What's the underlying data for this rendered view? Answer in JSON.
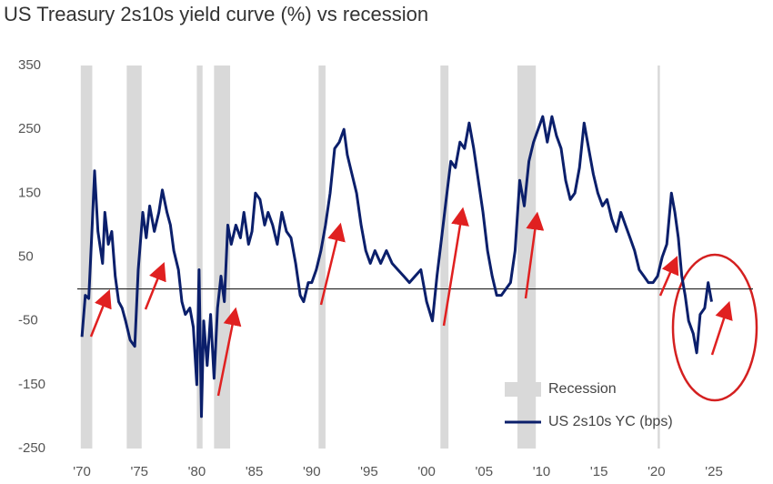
{
  "chart_data": {
    "type": "line",
    "title": "US Treasury 2s10s yield curve (%) vs recession",
    "x": [
      1970.0,
      1970.3,
      1970.6,
      1970.9,
      1971.1,
      1971.4,
      1971.8,
      1972.0,
      1972.3,
      1972.6,
      1972.9,
      1973.2,
      1973.5,
      1973.8,
      1974.2,
      1974.6,
      1974.9,
      1975.3,
      1975.6,
      1975.9,
      1976.3,
      1976.7,
      1977.0,
      1977.4,
      1977.7,
      1978.0,
      1978.4,
      1978.7,
      1979.0,
      1979.4,
      1979.7,
      1980.0,
      1980.2,
      1980.4,
      1980.6,
      1980.9,
      1981.2,
      1981.5,
      1981.8,
      1982.1,
      1982.4,
      1982.7,
      1983.0,
      1983.4,
      1983.8,
      1984.1,
      1984.5,
      1984.8,
      1985.1,
      1985.5,
      1985.9,
      1986.2,
      1986.6,
      1987.0,
      1987.4,
      1987.8,
      1988.2,
      1988.6,
      1989.0,
      1989.3,
      1989.7,
      1990.0,
      1990.4,
      1990.8,
      1991.2,
      1991.6,
      1992.0,
      1992.4,
      1992.8,
      1993.1,
      1993.5,
      1993.9,
      1994.3,
      1994.7,
      1995.1,
      1995.5,
      1996.0,
      1996.5,
      1997.0,
      1997.5,
      1998.0,
      1998.5,
      1999.0,
      1999.5,
      2000.0,
      2000.5,
      2000.9,
      2001.3,
      2001.7,
      2002.1,
      2002.5,
      2002.9,
      2003.3,
      2003.7,
      2004.1,
      2004.5,
      2004.9,
      2005.3,
      2005.7,
      2006.1,
      2006.5,
      2006.9,
      2007.3,
      2007.7,
      2008.1,
      2008.5,
      2008.9,
      2009.3,
      2009.7,
      2010.1,
      2010.5,
      2010.9,
      2011.3,
      2011.7,
      2012.1,
      2012.5,
      2012.9,
      2013.3,
      2013.7,
      2014.1,
      2014.5,
      2014.9,
      2015.3,
      2015.7,
      2016.1,
      2016.5,
      2016.9,
      2017.3,
      2017.7,
      2018.1,
      2018.5,
      2018.9,
      2019.3,
      2019.7,
      2020.1,
      2020.5,
      2020.9,
      2021.3,
      2021.6,
      2021.9,
      2022.2,
      2022.5,
      2022.8,
      2023.2,
      2023.5,
      2023.8,
      2024.2,
      2024.5,
      2024.8
    ],
    "series": [
      {
        "name": "US 2s10s YC (bps)",
        "color": "#0b1f6b",
        "values": [
          -75,
          -10,
          -15,
          100,
          185,
          90,
          40,
          120,
          70,
          90,
          20,
          -20,
          -30,
          -50,
          -80,
          -90,
          30,
          120,
          80,
          130,
          90,
          120,
          155,
          120,
          100,
          60,
          30,
          -20,
          -40,
          -30,
          -60,
          -150,
          30,
          -200,
          -50,
          -120,
          -40,
          -140,
          -30,
          20,
          -20,
          100,
          70,
          100,
          80,
          120,
          70,
          90,
          150,
          140,
          100,
          120,
          100,
          70,
          120,
          90,
          80,
          40,
          -10,
          -20,
          10,
          10,
          30,
          60,
          100,
          150,
          220,
          230,
          250,
          210,
          180,
          150,
          100,
          60,
          40,
          60,
          40,
          60,
          40,
          30,
          20,
          10,
          20,
          30,
          -20,
          -50,
          20,
          80,
          140,
          200,
          190,
          230,
          220,
          260,
          220,
          170,
          120,
          60,
          20,
          -10,
          -10,
          0,
          10,
          60,
          170,
          130,
          200,
          230,
          250,
          270,
          230,
          270,
          240,
          220,
          170,
          140,
          150,
          190,
          260,
          220,
          180,
          150,
          130,
          140,
          110,
          90,
          120,
          100,
          80,
          60,
          30,
          20,
          10,
          10,
          20,
          50,
          70,
          150,
          120,
          80,
          20,
          -10,
          -50,
          -70,
          -100,
          -40,
          -30,
          10,
          -20
        ]
      }
    ],
    "recessions": {
      "name": "Recession",
      "color": "#d9d9d9",
      "values": [
        [
          1969.9,
          1970.9
        ],
        [
          1973.9,
          1975.2
        ],
        [
          1980.0,
          1980.5
        ],
        [
          1981.5,
          1982.9
        ],
        [
          1990.6,
          1991.2
        ],
        [
          2001.2,
          2001.9
        ],
        [
          2007.9,
          2009.5
        ],
        [
          2020.1,
          2020.3
        ]
      ]
    },
    "reference_line": 0,
    "xlim": [
      1969.6,
      2028.4
    ],
    "xticks": [
      {
        "value": 1970,
        "label": "'70"
      },
      {
        "value": 1975,
        "label": "'75"
      },
      {
        "value": 1980,
        "label": "'80"
      },
      {
        "value": 1985,
        "label": "'85"
      },
      {
        "value": 1990,
        "label": "'90"
      },
      {
        "value": 1995,
        "label": "'95"
      },
      {
        "value": 2000,
        "label": "'00"
      },
      {
        "value": 2005,
        "label": "'05"
      },
      {
        "value": 2010,
        "label": "'10"
      },
      {
        "value": 2015,
        "label": "'15"
      },
      {
        "value": 2020,
        "label": "'20"
      },
      {
        "value": 2025,
        "label": "'25"
      }
    ],
    "ylim": [
      -250,
      350
    ],
    "yticks": [
      350,
      250,
      150,
      50,
      -50,
      -150,
      -250
    ],
    "legend": "lower right"
  }
}
